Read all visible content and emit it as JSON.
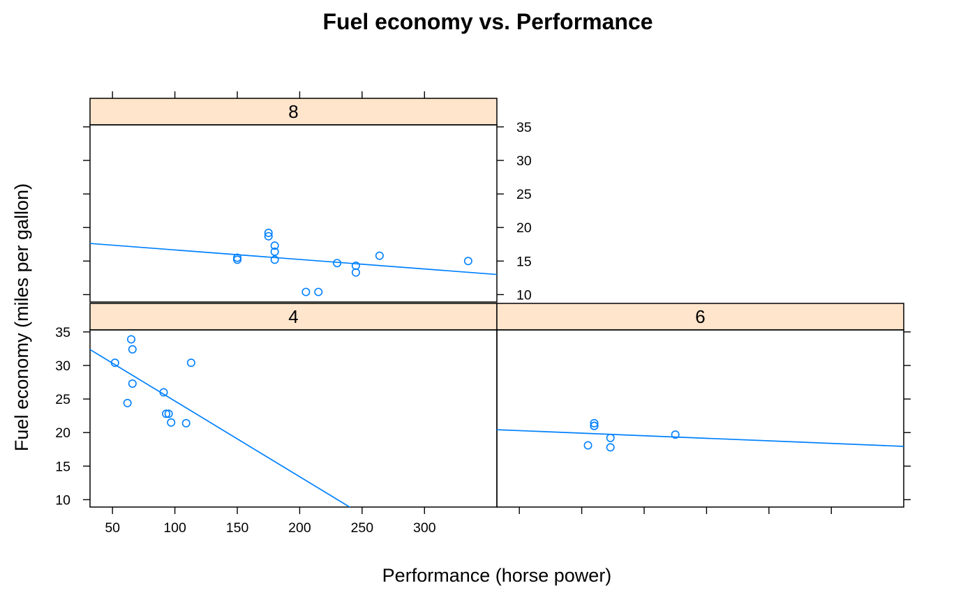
{
  "chart_data": {
    "type": "scatter",
    "title": "Fuel economy vs. Performance",
    "xlabel": "Performance (horse power)",
    "ylabel": "Fuel economy (miles per gallon)",
    "xlim": [
      32,
      358
    ],
    "ylim": [
      8.9,
      35.3
    ],
    "x_ticks": [
      50,
      100,
      150,
      200,
      250,
      300
    ],
    "x_tick_labels": [
      "50",
      "100",
      "150",
      "200",
      "250",
      "300"
    ],
    "y_ticks": [
      10,
      15,
      20,
      25,
      30,
      35
    ],
    "y_tick_labels": [
      "10",
      "15",
      "20",
      "25",
      "30",
      "35"
    ],
    "colors": {
      "points": "#0080ff",
      "strip_bg": "#ffe5cc",
      "frame": "#000000"
    },
    "panels": [
      {
        "strip": "4",
        "points": [
          {
            "x": 52,
            "y": 30.4
          },
          {
            "x": 65,
            "y": 33.9
          },
          {
            "x": 66,
            "y": 32.4
          },
          {
            "x": 66,
            "y": 27.3
          },
          {
            "x": 62,
            "y": 24.4
          },
          {
            "x": 91,
            "y": 26.0
          },
          {
            "x": 93,
            "y": 22.8
          },
          {
            "x": 95,
            "y": 22.8
          },
          {
            "x": 97,
            "y": 21.5
          },
          {
            "x": 109,
            "y": 21.4
          },
          {
            "x": 113,
            "y": 30.4
          }
        ],
        "fit": {
          "intercept": 35.98,
          "slope": -0.1128
        }
      },
      {
        "strip": "6",
        "points": [
          {
            "x": 110,
            "y": 21.0
          },
          {
            "x": 110,
            "y": 21.0
          },
          {
            "x": 110,
            "y": 21.4
          },
          {
            "x": 105,
            "y": 18.1
          },
          {
            "x": 123,
            "y": 19.2
          },
          {
            "x": 123,
            "y": 17.8
          },
          {
            "x": 175,
            "y": 19.7
          }
        ],
        "fit": {
          "intercept": 20.67,
          "slope": -0.00761
        }
      },
      {
        "strip": "8",
        "points": [
          {
            "x": 175,
            "y": 18.7
          },
          {
            "x": 175,
            "y": 19.2
          },
          {
            "x": 180,
            "y": 16.4
          },
          {
            "x": 180,
            "y": 17.3
          },
          {
            "x": 180,
            "y": 15.2
          },
          {
            "x": 150,
            "y": 15.5
          },
          {
            "x": 150,
            "y": 15.2
          },
          {
            "x": 205,
            "y": 10.4
          },
          {
            "x": 215,
            "y": 10.4
          },
          {
            "x": 230,
            "y": 14.7
          },
          {
            "x": 245,
            "y": 14.3
          },
          {
            "x": 245,
            "y": 13.3
          },
          {
            "x": 264,
            "y": 15.8
          },
          {
            "x": 335,
            "y": 15.0
          }
        ],
        "fit": {
          "intercept": 18.08,
          "slope": -0.0142
        }
      }
    ]
  }
}
